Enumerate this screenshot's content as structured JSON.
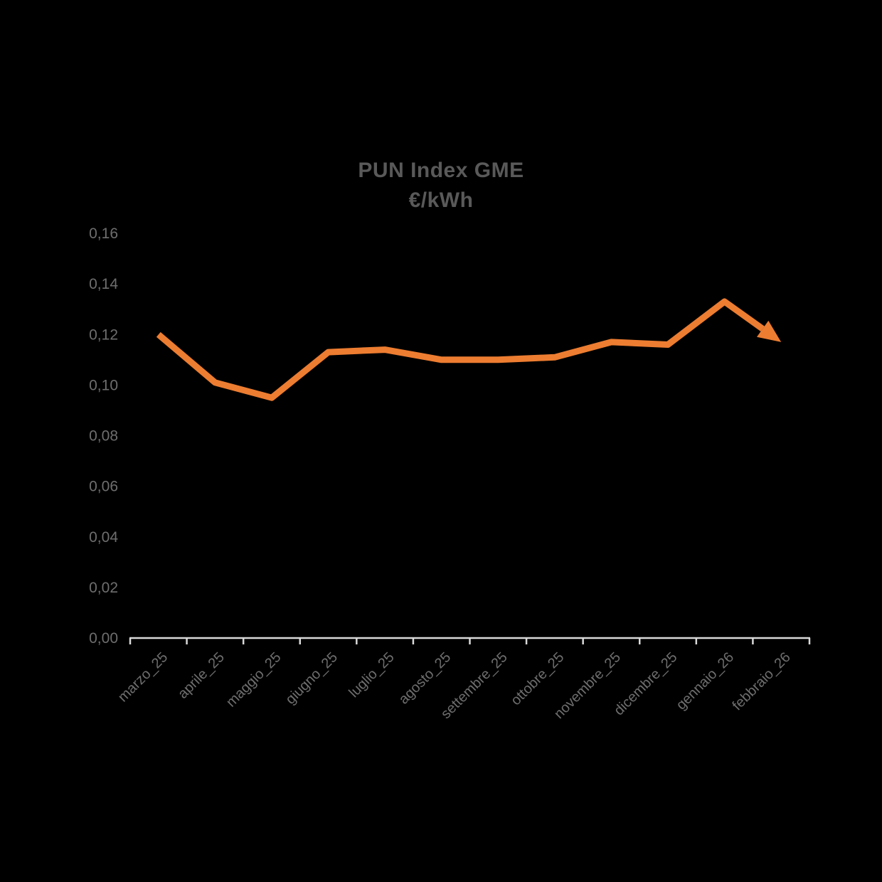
{
  "chart_data": {
    "type": "line",
    "title": "PUN Index GME",
    "subtitle": "€/kWh",
    "categories": [
      "marzo_25",
      "aprile_25",
      "maggio_25",
      "giugno_25",
      "luglio_25",
      "agosto_25",
      "settembre_25",
      "ottobre_25",
      "novembre_25",
      "dicembre_25",
      "gennaio_26",
      "febbraio_26"
    ],
    "values": [
      0.12,
      0.101,
      0.095,
      0.113,
      0.114,
      0.11,
      0.11,
      0.111,
      0.117,
      0.116,
      0.133,
      0.117
    ],
    "ylim": [
      0,
      0.16
    ],
    "ytick_step": 0.02,
    "ytick_labels": [
      "0,00",
      "0,02",
      "0,04",
      "0,06",
      "0,08",
      "0,10",
      "0,12",
      "0,14",
      "0,16"
    ],
    "grid": false,
    "legend": "none",
    "arrow_at_end": true,
    "colors": {
      "line": "#ED7D31",
      "axis": "#D9D9D9",
      "title_text": "#595959",
      "tick_text": "#6E6E6E",
      "background": "#000000"
    }
  }
}
